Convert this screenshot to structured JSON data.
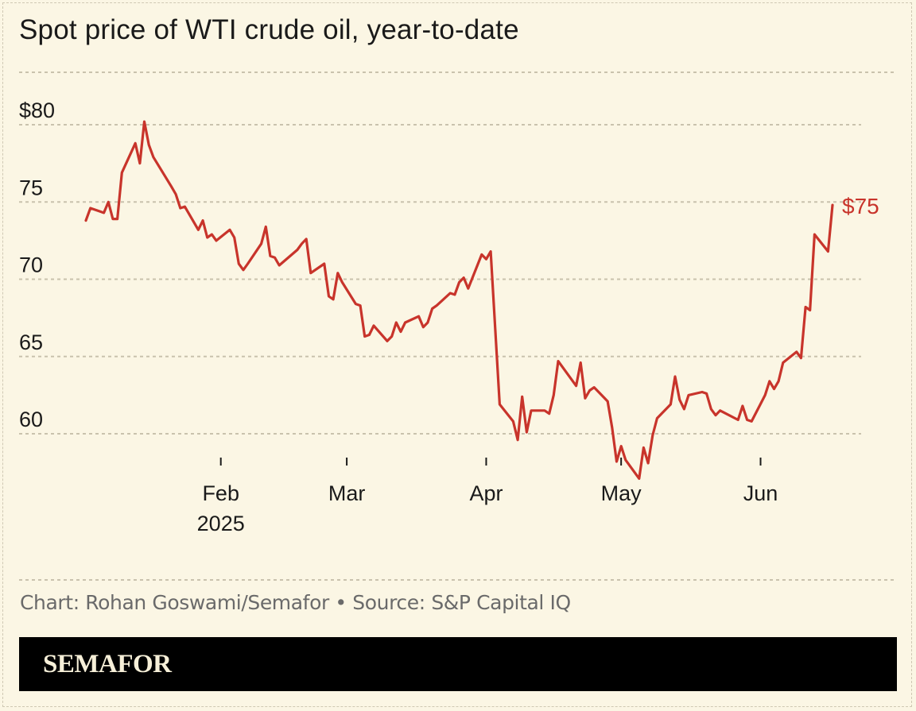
{
  "title": "Spot price of WTI crude oil, year-to-date",
  "source": "Chart: Rohan Goswami/Semafor • Source: S&P Capital IQ",
  "brand": "SEMAFOR",
  "colors": {
    "background": "#fbf6e4",
    "line": "#c8342b",
    "grid": "#c9c2ad",
    "text": "#1a1a1a",
    "source_text": "#6a6a6a",
    "brand_bar": "#000000"
  },
  "chart_data": {
    "type": "line",
    "title": "Spot price of WTI crude oil, year-to-date",
    "xlabel": "",
    "ylabel": "",
    "ylim": [
      58,
      82
    ],
    "xlim": [
      "2025-01-02",
      "2025-06-20"
    ],
    "y_ticks": [
      {
        "value": 80,
        "label": "$80"
      },
      {
        "value": 75,
        "label": "75"
      },
      {
        "value": 70,
        "label": "70"
      },
      {
        "value": 65,
        "label": "65"
      },
      {
        "value": 60,
        "label": "60"
      }
    ],
    "x_ticks": [
      {
        "date": "2025-02-01",
        "label": "Feb",
        "sublabel": "2025"
      },
      {
        "date": "2025-03-01",
        "label": "Mar",
        "sublabel": ""
      },
      {
        "date": "2025-04-01",
        "label": "Apr",
        "sublabel": ""
      },
      {
        "date": "2025-05-01",
        "label": "May",
        "sublabel": ""
      },
      {
        "date": "2025-06-01",
        "label": "Jun",
        "sublabel": ""
      }
    ],
    "grid": "horizontal dashed",
    "end_label": "$75",
    "series": [
      {
        "values": [
          [
            "2025-01-02",
            73.8
          ],
          [
            "2025-01-03",
            74.6
          ],
          [
            "2025-01-06",
            74.3
          ],
          [
            "2025-01-07",
            75.0
          ],
          [
            "2025-01-08",
            73.9
          ],
          [
            "2025-01-09",
            73.9
          ],
          [
            "2025-01-10",
            76.9
          ],
          [
            "2025-01-13",
            78.8
          ],
          [
            "2025-01-14",
            77.5
          ],
          [
            "2025-01-15",
            80.2
          ],
          [
            "2025-01-16",
            78.7
          ],
          [
            "2025-01-17",
            77.9
          ],
          [
            "2025-01-21",
            76.0
          ],
          [
            "2025-01-22",
            75.5
          ],
          [
            "2025-01-23",
            74.6
          ],
          [
            "2025-01-24",
            74.7
          ],
          [
            "2025-01-27",
            73.2
          ],
          [
            "2025-01-28",
            73.8
          ],
          [
            "2025-01-29",
            72.7
          ],
          [
            "2025-01-30",
            72.9
          ],
          [
            "2025-01-31",
            72.5
          ],
          [
            "2025-02-03",
            73.2
          ],
          [
            "2025-02-04",
            72.7
          ],
          [
            "2025-02-05",
            71.0
          ],
          [
            "2025-02-06",
            70.6
          ],
          [
            "2025-02-07",
            71.0
          ],
          [
            "2025-02-10",
            72.3
          ],
          [
            "2025-02-11",
            73.4
          ],
          [
            "2025-02-12",
            71.5
          ],
          [
            "2025-02-13",
            71.4
          ],
          [
            "2025-02-14",
            70.9
          ],
          [
            "2025-02-18",
            71.9
          ],
          [
            "2025-02-19",
            72.3
          ],
          [
            "2025-02-20",
            72.6
          ],
          [
            "2025-02-21",
            70.4
          ],
          [
            "2025-02-24",
            71.0
          ],
          [
            "2025-02-25",
            68.9
          ],
          [
            "2025-02-26",
            68.7
          ],
          [
            "2025-02-27",
            70.4
          ],
          [
            "2025-02-28",
            69.8
          ],
          [
            "2025-03-03",
            68.4
          ],
          [
            "2025-03-04",
            68.3
          ],
          [
            "2025-03-05",
            66.3
          ],
          [
            "2025-03-06",
            66.4
          ],
          [
            "2025-03-07",
            67.0
          ],
          [
            "2025-03-10",
            66.0
          ],
          [
            "2025-03-11",
            66.3
          ],
          [
            "2025-03-12",
            67.2
          ],
          [
            "2025-03-13",
            66.6
          ],
          [
            "2025-03-14",
            67.2
          ],
          [
            "2025-03-17",
            67.6
          ],
          [
            "2025-03-18",
            66.9
          ],
          [
            "2025-03-19",
            67.2
          ],
          [
            "2025-03-20",
            68.1
          ],
          [
            "2025-03-21",
            68.3
          ],
          [
            "2025-03-24",
            69.1
          ],
          [
            "2025-03-25",
            69.0
          ],
          [
            "2025-03-26",
            69.8
          ],
          [
            "2025-03-27",
            70.1
          ],
          [
            "2025-03-28",
            69.4
          ],
          [
            "2025-03-31",
            71.6
          ],
          [
            "2025-04-01",
            71.3
          ],
          [
            "2025-04-02",
            71.8
          ],
          [
            "2025-04-03",
            66.8
          ],
          [
            "2025-04-04",
            61.9
          ],
          [
            "2025-04-07",
            60.8
          ],
          [
            "2025-04-08",
            59.6
          ],
          [
            "2025-04-09",
            62.4
          ],
          [
            "2025-04-10",
            60.1
          ],
          [
            "2025-04-11",
            61.5
          ],
          [
            "2025-04-14",
            61.5
          ],
          [
            "2025-04-15",
            61.3
          ],
          [
            "2025-04-16",
            62.5
          ],
          [
            "2025-04-17",
            64.7
          ],
          [
            "2025-04-21",
            63.1
          ],
          [
            "2025-04-22",
            64.6
          ],
          [
            "2025-04-23",
            62.3
          ],
          [
            "2025-04-24",
            62.8
          ],
          [
            "2025-04-25",
            63.0
          ],
          [
            "2025-04-28",
            62.1
          ],
          [
            "2025-04-29",
            60.4
          ],
          [
            "2025-04-30",
            58.2
          ],
          [
            "2025-05-01",
            59.2
          ],
          [
            "2025-05-02",
            58.3
          ],
          [
            "2025-05-05",
            57.1
          ],
          [
            "2025-05-06",
            59.1
          ],
          [
            "2025-05-07",
            58.1
          ],
          [
            "2025-05-08",
            59.9
          ],
          [
            "2025-05-09",
            61.0
          ],
          [
            "2025-05-12",
            61.9
          ],
          [
            "2025-05-13",
            63.7
          ],
          [
            "2025-05-14",
            62.2
          ],
          [
            "2025-05-15",
            61.6
          ],
          [
            "2025-05-16",
            62.5
          ],
          [
            "2025-05-19",
            62.7
          ],
          [
            "2025-05-20",
            62.6
          ],
          [
            "2025-05-21",
            61.6
          ],
          [
            "2025-05-22",
            61.2
          ],
          [
            "2025-05-23",
            61.5
          ],
          [
            "2025-05-27",
            60.9
          ],
          [
            "2025-05-28",
            61.8
          ],
          [
            "2025-05-29",
            60.9
          ],
          [
            "2025-05-30",
            60.8
          ],
          [
            "2025-06-02",
            62.5
          ],
          [
            "2025-06-03",
            63.4
          ],
          [
            "2025-06-04",
            62.9
          ],
          [
            "2025-06-05",
            63.4
          ],
          [
            "2025-06-06",
            64.6
          ],
          [
            "2025-06-09",
            65.3
          ],
          [
            "2025-06-10",
            64.9
          ],
          [
            "2025-06-11",
            68.2
          ],
          [
            "2025-06-12",
            68.0
          ],
          [
            "2025-06-13",
            72.9
          ],
          [
            "2025-06-16",
            71.8
          ],
          [
            "2025-06-17",
            74.8
          ]
        ]
      }
    ]
  }
}
